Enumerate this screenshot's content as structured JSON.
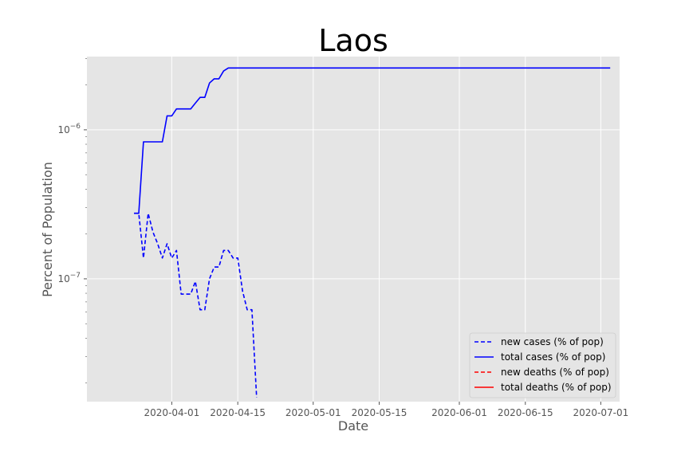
{
  "chart_data": {
    "type": "line",
    "title": "Laos",
    "xlabel": "Date",
    "ylabel": "Percent of Population",
    "y_scale": "log",
    "ylim": [
      1.5e-08,
      3.1e-06
    ],
    "xlim": [
      "2020-03-14",
      "2020-07-05"
    ],
    "x_ticks": [
      "2020-04-01",
      "2020-04-15",
      "2020-05-01",
      "2020-05-15",
      "2020-06-01",
      "2020-06-15",
      "2020-07-01"
    ],
    "y_ticks": [
      {
        "value": 1e-07,
        "label_base": "10",
        "label_exp": "−7"
      },
      {
        "value": 1e-06,
        "label_base": "10",
        "label_exp": "−6"
      }
    ],
    "grid": true,
    "legend_position": "lower-right",
    "colors": {
      "background": "#E5E5E5",
      "grid": "#FFFFFF",
      "cases": "#0000FF",
      "deaths": "#FF0000"
    },
    "series": [
      {
        "name": "new cases (% of pop)",
        "style": "dashed",
        "color": "#0000FF",
        "points": [
          [
            "2020-03-24",
            2.75e-07
          ],
          [
            "2020-03-25",
            2.75e-07
          ],
          [
            "2020-03-26",
            1.38e-07
          ],
          [
            "2020-03-27",
            2.75e-07
          ],
          [
            "2020-03-28",
            2.06e-07
          ],
          [
            "2020-03-29",
            1.72e-07
          ],
          [
            "2020-03-30",
            1.38e-07
          ],
          [
            "2020-03-31",
            1.72e-07
          ],
          [
            "2020-04-01",
            1.38e-07
          ],
          [
            "2020-04-02",
            1.55e-07
          ],
          [
            "2020-04-03",
            7.9e-08
          ],
          [
            "2020-04-04",
            7.9e-08
          ],
          [
            "2020-04-05",
            7.9e-08
          ],
          [
            "2020-04-06",
            9.6e-08
          ],
          [
            "2020-04-07",
            6.2e-08
          ],
          [
            "2020-04-08",
            6.2e-08
          ],
          [
            "2020-04-09",
            1e-07
          ],
          [
            "2020-04-10",
            1.2e-07
          ],
          [
            "2020-04-11",
            1.2e-07
          ],
          [
            "2020-04-12",
            1.55e-07
          ],
          [
            "2020-04-13",
            1.55e-07
          ],
          [
            "2020-04-14",
            1.38e-07
          ],
          [
            "2020-04-15",
            1.38e-07
          ],
          [
            "2020-04-16",
            8.3e-08
          ],
          [
            "2020-04-17",
            6.2e-08
          ],
          [
            "2020-04-18",
            6.2e-08
          ],
          [
            "2020-04-19",
            1.6e-08
          ]
        ]
      },
      {
        "name": "total cases (% of pop)",
        "style": "solid",
        "color": "#0000FF",
        "points": [
          [
            "2020-03-24",
            2.75e-07
          ],
          [
            "2020-03-25",
            2.75e-07
          ],
          [
            "2020-03-26",
            8.3e-07
          ],
          [
            "2020-03-27",
            8.3e-07
          ],
          [
            "2020-03-28",
            8.3e-07
          ],
          [
            "2020-03-29",
            8.3e-07
          ],
          [
            "2020-03-30",
            8.3e-07
          ],
          [
            "2020-03-31",
            1.24e-06
          ],
          [
            "2020-04-01",
            1.24e-06
          ],
          [
            "2020-04-02",
            1.38e-06
          ],
          [
            "2020-04-03",
            1.38e-06
          ],
          [
            "2020-04-04",
            1.38e-06
          ],
          [
            "2020-04-05",
            1.38e-06
          ],
          [
            "2020-04-06",
            1.51e-06
          ],
          [
            "2020-04-07",
            1.65e-06
          ],
          [
            "2020-04-08",
            1.65e-06
          ],
          [
            "2020-04-09",
            2.06e-06
          ],
          [
            "2020-04-10",
            2.2e-06
          ],
          [
            "2020-04-11",
            2.2e-06
          ],
          [
            "2020-04-12",
            2.48e-06
          ],
          [
            "2020-04-13",
            2.6e-06
          ],
          [
            "2020-05-01",
            2.6e-06
          ],
          [
            "2020-06-01",
            2.6e-06
          ],
          [
            "2020-07-03",
            2.6e-06
          ]
        ]
      },
      {
        "name": "new deaths (% of pop)",
        "style": "dashed",
        "color": "#FF0000",
        "points": []
      },
      {
        "name": "total deaths (% of pop)",
        "style": "solid",
        "color": "#FF0000",
        "points": []
      }
    ]
  }
}
